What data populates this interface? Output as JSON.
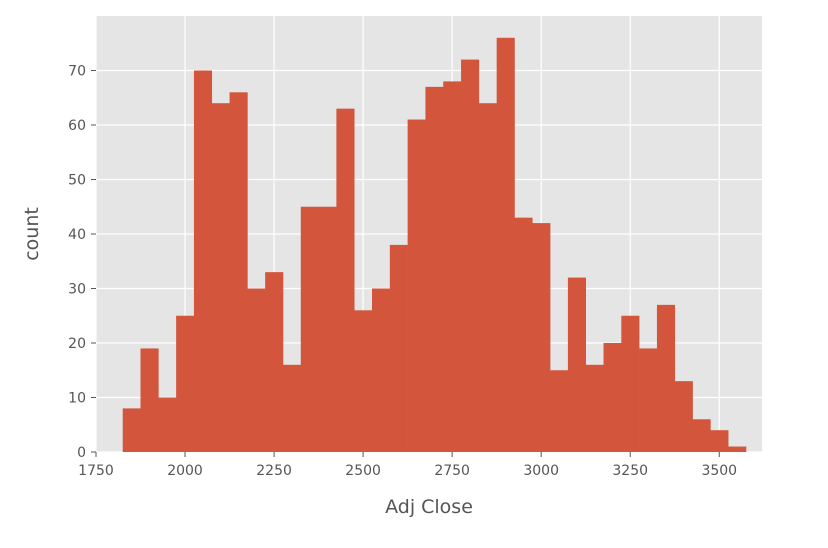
{
  "chart_data": {
    "type": "bar",
    "histogram": true,
    "xlabel": "Adj Close",
    "ylabel": "count",
    "xlim": [
      1750,
      3620
    ],
    "ylim": [
      0,
      80
    ],
    "x_ticks": [
      1750,
      2000,
      2250,
      2500,
      2750,
      3000,
      3250,
      3500
    ],
    "y_ticks": [
      0,
      10,
      20,
      30,
      40,
      50,
      60,
      70
    ],
    "grid": true,
    "colors": {
      "bar": "#D2553C",
      "plot_background": "#E5E5E5",
      "grid": "#FFFFFF",
      "text": "#555555"
    },
    "bins_start": 1825,
    "bin_width": 50,
    "values": [
      8,
      19,
      10,
      25,
      70,
      64,
      66,
      30,
      33,
      16,
      45,
      45,
      63,
      26,
      30,
      38,
      61,
      67,
      68,
      72,
      64,
      76,
      43,
      42,
      15,
      32,
      16,
      20,
      25,
      19,
      27,
      13,
      6,
      4,
      1
    ]
  }
}
